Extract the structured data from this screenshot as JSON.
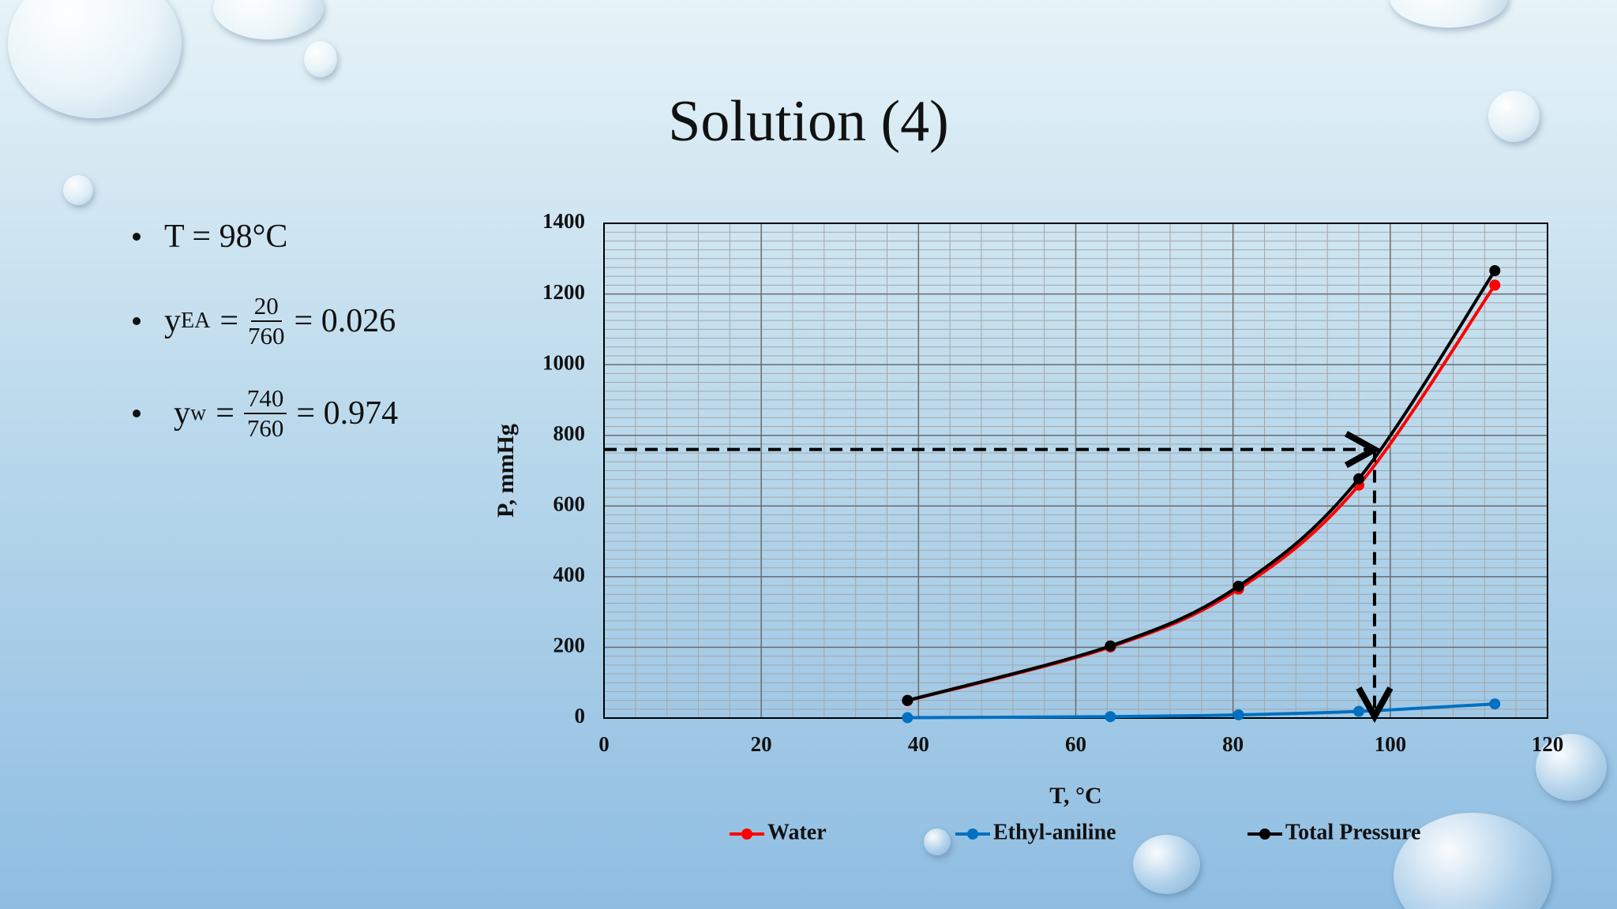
{
  "title": "Solution (4)",
  "bullets": [
    {
      "text": "T = 98°C"
    },
    {
      "variable": "y",
      "subscript": "EA",
      "relation": "=",
      "numerator": "20",
      "denominator": "760",
      "result": "= 0.026"
    },
    {
      "variable": "y",
      "subscript": "w",
      "relation": "=",
      "numerator": "740",
      "denominator": "760",
      "result": "= 0.974"
    }
  ],
  "chart_data": {
    "type": "line",
    "x_label": "T, °C",
    "y_label": "P, mmHg",
    "xlim": [
      0,
      120
    ],
    "xticks": [
      0,
      20,
      40,
      60,
      80,
      100,
      120
    ],
    "ylim": [
      0,
      1400
    ],
    "yticks": [
      0,
      200,
      400,
      600,
      800,
      1000,
      1200,
      1400
    ],
    "grid": true,
    "minor_grid": {
      "x": 4,
      "y": 25
    },
    "legend": "bottom",
    "x": [
      38.6,
      64.4,
      80.7,
      96,
      113.3
    ],
    "series": [
      {
        "name": "Water",
        "color": "#ff0000",
        "values": [
          49,
          201,
          365,
          659,
          1225
        ]
      },
      {
        "name": "Ethyl-aniline",
        "color": "#0070c0",
        "values": [
          1,
          4,
          9,
          19,
          40
        ]
      },
      {
        "name": "Total Pressure",
        "color": "#000000",
        "values": [
          50,
          204,
          373,
          677,
          1266
        ]
      }
    ],
    "annotation": {
      "pressure": 760,
      "temperature": 98
    }
  }
}
